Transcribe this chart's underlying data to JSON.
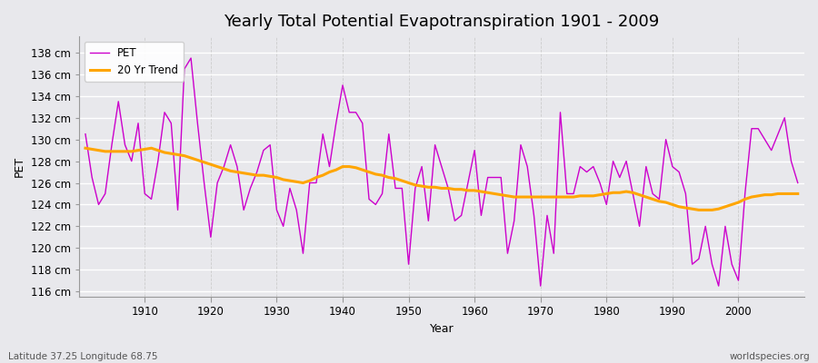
{
  "title": "Yearly Total Potential Evapotranspiration 1901 - 2009",
  "xlabel": "Year",
  "ylabel": "PET",
  "footnote_left": "Latitude 37.25 Longitude 68.75",
  "footnote_right": "worldspecies.org",
  "ylim": [
    115.5,
    139.5
  ],
  "xlim": [
    1900,
    2010
  ],
  "ytick_values": [
    116,
    118,
    120,
    122,
    124,
    126,
    128,
    130,
    132,
    134,
    136,
    138
  ],
  "xtick_values": [
    1910,
    1920,
    1930,
    1940,
    1950,
    1960,
    1970,
    1980,
    1990,
    2000
  ],
  "years": [
    1901,
    1902,
    1903,
    1904,
    1905,
    1906,
    1907,
    1908,
    1909,
    1910,
    1911,
    1912,
    1913,
    1914,
    1915,
    1916,
    1917,
    1918,
    1919,
    1920,
    1921,
    1922,
    1923,
    1924,
    1925,
    1926,
    1927,
    1928,
    1929,
    1930,
    1931,
    1932,
    1933,
    1934,
    1935,
    1936,
    1937,
    1938,
    1939,
    1940,
    1941,
    1942,
    1943,
    1944,
    1945,
    1946,
    1947,
    1948,
    1949,
    1950,
    1951,
    1952,
    1953,
    1954,
    1955,
    1956,
    1957,
    1958,
    1959,
    1960,
    1961,
    1962,
    1963,
    1964,
    1965,
    1966,
    1967,
    1968,
    1969,
    1970,
    1971,
    1972,
    1973,
    1974,
    1975,
    1976,
    1977,
    1978,
    1979,
    1980,
    1981,
    1982,
    1983,
    1984,
    1985,
    1986,
    1987,
    1988,
    1989,
    1990,
    1991,
    1992,
    1993,
    1994,
    1995,
    1996,
    1997,
    1998,
    1999,
    2000,
    2001,
    2002,
    2003,
    2004,
    2005,
    2006,
    2007,
    2008,
    2009
  ],
  "pet": [
    130.5,
    126.5,
    124.0,
    125.0,
    129.5,
    133.5,
    129.5,
    128.0,
    131.5,
    125.0,
    124.5,
    128.0,
    132.5,
    131.5,
    123.5,
    136.5,
    137.5,
    131.5,
    126.0,
    121.0,
    126.0,
    127.5,
    129.5,
    127.5,
    123.5,
    125.5,
    127.0,
    129.0,
    129.5,
    123.5,
    122.0,
    125.5,
    123.5,
    119.5,
    126.0,
    126.0,
    130.5,
    127.5,
    131.5,
    135.0,
    132.5,
    132.5,
    131.5,
    124.5,
    124.0,
    125.0,
    130.5,
    125.5,
    125.5,
    118.5,
    125.5,
    127.5,
    122.5,
    129.5,
    127.5,
    125.5,
    122.5,
    123.0,
    126.0,
    129.0,
    123.0,
    126.5,
    126.5,
    126.5,
    119.5,
    122.5,
    129.5,
    127.5,
    123.0,
    116.5,
    123.0,
    119.5,
    132.5,
    125.0,
    125.0,
    127.5,
    127.0,
    127.5,
    126.0,
    124.0,
    128.0,
    126.5,
    128.0,
    125.0,
    122.0,
    127.5,
    125.0,
    124.5,
    130.0,
    127.5,
    127.0,
    125.0,
    118.5,
    119.0,
    122.0,
    118.5,
    116.5,
    122.0,
    118.5,
    117.0,
    125.0,
    131.0,
    131.0,
    130.0,
    129.0,
    130.5,
    132.0,
    128.0,
    126.0
  ],
  "trend": [
    129.2,
    129.1,
    129.0,
    128.9,
    128.9,
    128.9,
    128.9,
    128.9,
    129.0,
    129.1,
    129.2,
    129.0,
    128.8,
    128.7,
    128.6,
    128.5,
    128.3,
    128.1,
    127.9,
    127.7,
    127.5,
    127.3,
    127.1,
    127.0,
    126.9,
    126.8,
    126.7,
    126.7,
    126.6,
    126.5,
    126.3,
    126.2,
    126.1,
    126.0,
    126.2,
    126.5,
    126.7,
    127.0,
    127.2,
    127.5,
    127.5,
    127.4,
    127.2,
    127.0,
    126.8,
    126.7,
    126.5,
    126.4,
    126.2,
    126.0,
    125.8,
    125.7,
    125.6,
    125.6,
    125.5,
    125.5,
    125.4,
    125.4,
    125.3,
    125.3,
    125.2,
    125.1,
    125.0,
    124.9,
    124.8,
    124.7,
    124.7,
    124.7,
    124.7,
    124.7,
    124.7,
    124.7,
    124.7,
    124.7,
    124.7,
    124.8,
    124.8,
    124.8,
    124.9,
    125.0,
    125.1,
    125.1,
    125.2,
    125.1,
    124.9,
    124.7,
    124.5,
    124.3,
    124.2,
    124.0,
    123.8,
    123.7,
    123.6,
    123.5,
    123.5,
    123.5,
    123.6,
    123.8,
    124.0,
    124.2,
    124.5,
    124.7,
    124.8,
    124.9,
    124.9,
    125.0,
    125.0,
    125.0,
    125.0
  ],
  "pet_color": "#cc00cc",
  "trend_color": "#FFA500",
  "bg_color": "#e8e8ec",
  "grid_color_h": "#ffffff",
  "grid_color_v": "#cccccc",
  "legend_pet_label": "PET",
  "legend_trend_label": "20 Yr Trend",
  "title_fontsize": 13,
  "axis_label_fontsize": 9,
  "tick_fontsize": 8.5,
  "footnote_fontsize": 7.5
}
